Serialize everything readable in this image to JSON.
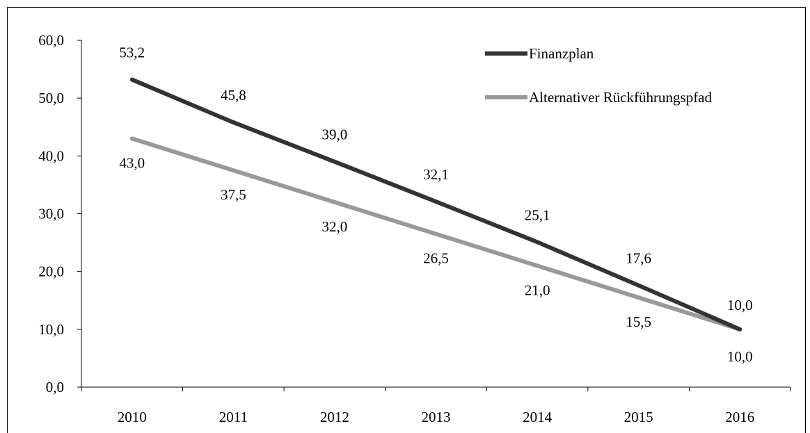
{
  "chart_data": {
    "type": "line",
    "categories": [
      "2010",
      "2011",
      "2012",
      "2013",
      "2014",
      "2015",
      "2016"
    ],
    "ylim": [
      0,
      60
    ],
    "yticks": [
      "0,0",
      "10,0",
      "20,0",
      "30,0",
      "40,0",
      "50,0",
      "60,0"
    ],
    "grid": false,
    "legend_position": "top-right",
    "series": [
      {
        "name": "Finanzplan",
        "color": "#333333",
        "values": [
          53.2,
          45.8,
          39.0,
          32.1,
          25.1,
          17.6,
          10.0
        ],
        "labels": [
          "53,2",
          "45,8",
          "39,0",
          "32,1",
          "25,1",
          "17,6",
          "10,0"
        ]
      },
      {
        "name": "Alternativer Rückführungspfad",
        "color": "#999999",
        "values": [
          43.0,
          37.5,
          32.0,
          26.5,
          21.0,
          15.5,
          10.0
        ],
        "labels": [
          "43,0",
          "37,5",
          "32,0",
          "26,5",
          "21,0",
          "15,5",
          "10,0"
        ]
      }
    ]
  }
}
